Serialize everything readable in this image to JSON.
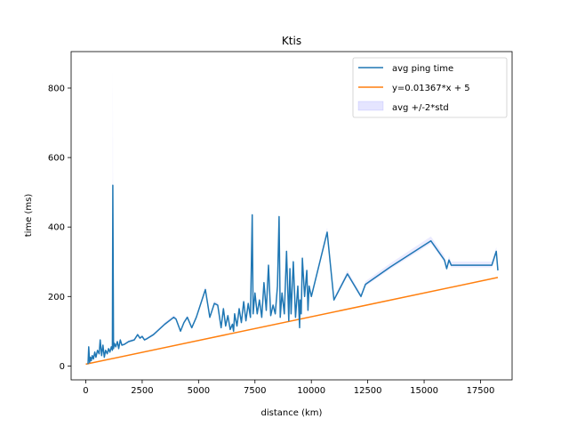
{
  "chart_data": {
    "type": "line",
    "title": "Ktis",
    "xlabel": "distance (km)",
    "ylabel": "time (ms)",
    "xlim": [
      -650,
      18900
    ],
    "ylim": [
      -40,
      905
    ],
    "xticks": [
      0,
      2500,
      5000,
      7500,
      10000,
      12500,
      15000,
      17500
    ],
    "yticks": [
      0,
      200,
      400,
      600,
      800
    ],
    "grid": false,
    "legend_position": "top-right",
    "series": [
      {
        "name": "avg ping time",
        "color": "#1f77b4",
        "kind": "line",
        "x": [
          100,
          130,
          170,
          200,
          240,
          290,
          340,
          400,
          450,
          520,
          590,
          640,
          700,
          760,
          820,
          880,
          950,
          1010,
          1070,
          1130,
          1180,
          1200,
          1230,
          1270,
          1330,
          1400,
          1460,
          1530,
          1600,
          1700,
          1900,
          2150,
          2300,
          2400,
          2500,
          2600,
          2700,
          3000,
          3500,
          3900,
          4000,
          4200,
          4350,
          4500,
          4700,
          4900,
          5100,
          5300,
          5500,
          5700,
          5850,
          6000,
          6100,
          6200,
          6300,
          6400,
          6500,
          6550,
          6600,
          6700,
          6800,
          6900,
          7000,
          7100,
          7200,
          7300,
          7380,
          7420,
          7500,
          7600,
          7700,
          7800,
          7900,
          8000,
          8100,
          8200,
          8300,
          8400,
          8500,
          8570,
          8620,
          8700,
          8800,
          8900,
          9000,
          9050,
          9100,
          9200,
          9300,
          9400,
          9480,
          9500,
          9550,
          9600,
          9700,
          9800,
          9850,
          9900,
          10000,
          10700,
          11000,
          11600,
          12200,
          12400,
          13500,
          15300,
          15900,
          16000,
          16100,
          16200,
          18000,
          18200,
          18250,
          18270
        ],
        "y": [
          5,
          55,
          10,
          25,
          15,
          30,
          20,
          40,
          25,
          45,
          35,
          75,
          30,
          60,
          25,
          45,
          35,
          50,
          40,
          55,
          45,
          520,
          50,
          65,
          55,
          70,
          50,
          75,
          60,
          62,
          70,
          75,
          90,
          80,
          85,
          75,
          78,
          90,
          120,
          140,
          135,
          100,
          125,
          140,
          110,
          140,
          180,
          220,
          140,
          180,
          175,
          110,
          165,
          115,
          145,
          105,
          120,
          100,
          150,
          115,
          165,
          125,
          185,
          130,
          180,
          140,
          435,
          150,
          210,
          150,
          190,
          140,
          240,
          160,
          290,
          145,
          175,
          150,
          230,
          430,
          140,
          210,
          150,
          330,
          130,
          280,
          150,
          300,
          140,
          230,
          110,
          190,
          150,
          310,
          200,
          275,
          160,
          230,
          200,
          385,
          190,
          265,
          200,
          235,
          285,
          360,
          305,
          280,
          305,
          290,
          290,
          330,
          290,
          275
        ]
      },
      {
        "name": "y=0.01367*x + 5",
        "color": "#ff7f0e",
        "kind": "line",
        "x": [
          0,
          18270
        ],
        "y": [
          5,
          254.8
        ]
      },
      {
        "name": "avg +/-2*std",
        "color": "#0000ff",
        "kind": "band"
      }
    ]
  }
}
